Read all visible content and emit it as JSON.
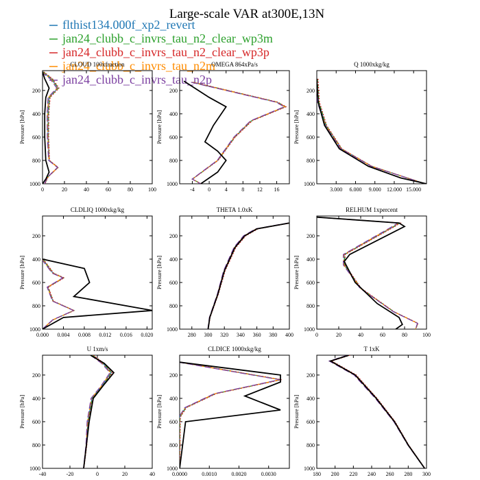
{
  "title": "Large-scale VAR at300E,13N",
  "legend": [
    {
      "name": "flthist134.000f_xp2_revert",
      "color": "#1f77b4",
      "dash": "solid"
    },
    {
      "name": "jan24_clubb_c_invrs_tau_n2_clear_wp3m",
      "color": "#2ca02c",
      "dash": "dash"
    },
    {
      "name": "jan24_clubb_c_invrs_tau_n2_clear_wp3p",
      "color": "#d62728",
      "dash": "dot"
    },
    {
      "name": "jan24_clubb_c_invrs_tau_n2m",
      "color": "#ff8c00",
      "dash": "dashdot"
    },
    {
      "name": "jan24_clubb_c_invrs_tau_n2p",
      "color": "#7b3fa0",
      "dash": "longdash"
    }
  ],
  "chart_data": [
    {
      "type": "line",
      "title": "CLOUD  100xfraction",
      "ylabel": "Pressure [hPa]",
      "xlim": [
        0,
        100
      ],
      "ylim": [
        1000,
        30
      ],
      "xticks": [
        0,
        20,
        40,
        60,
        80,
        100
      ],
      "yticks": [
        200,
        400,
        600,
        800,
        1000
      ],
      "obs": [
        [
          0,
          40
        ],
        [
          2,
          100
        ],
        [
          6,
          180
        ],
        [
          3,
          260
        ],
        [
          2,
          400
        ],
        [
          2,
          600
        ],
        [
          3,
          800
        ],
        [
          6,
          900
        ],
        [
          3,
          960
        ],
        [
          0,
          1000
        ]
      ],
      "model": [
        [
          0,
          40
        ],
        [
          8,
          100
        ],
        [
          14,
          180
        ],
        [
          6,
          260
        ],
        [
          5,
          400
        ],
        [
          5,
          600
        ],
        [
          6,
          800
        ],
        [
          14,
          860
        ],
        [
          5,
          940
        ],
        [
          2,
          1000
        ]
      ]
    },
    {
      "type": "line",
      "title": "OMEGA  864xPa/s",
      "ylabel": "Pressure [hPa]",
      "xlim": [
        -7,
        19
      ],
      "ylim": [
        1000,
        30
      ],
      "xticks": [
        -4,
        0,
        4,
        8,
        12,
        16
      ],
      "yticks": [
        200,
        400,
        600,
        800,
        1000
      ],
      "obs": [
        [
          -6,
          120
        ],
        [
          0,
          260
        ],
        [
          4,
          340
        ],
        [
          1,
          500
        ],
        [
          -1,
          640
        ],
        [
          2,
          720
        ],
        [
          4,
          800
        ],
        [
          2,
          900
        ],
        [
          -2,
          1000
        ]
      ],
      "model": [
        [
          -4,
          130
        ],
        [
          16,
          300
        ],
        [
          18,
          340
        ],
        [
          10,
          460
        ],
        [
          6,
          600
        ],
        [
          2,
          800
        ],
        [
          -4,
          960
        ],
        [
          -2,
          1000
        ]
      ]
    },
    {
      "type": "line",
      "title": "Q  1000xkg/kg",
      "ylabel": "Pressure [hPa]",
      "xlim": [
        0,
        17000
      ],
      "ylim": [
        1000,
        30
      ],
      "xticks": [
        3000,
        6000,
        9000,
        12000,
        15000
      ],
      "xticklabels": [
        "3.000",
        "6.000",
        "9.000",
        "12.000",
        "15.000"
      ],
      "yticks": [
        200,
        400,
        600,
        800,
        1000
      ],
      "obs": [
        [
          0,
          100
        ],
        [
          200,
          300
        ],
        [
          1200,
          500
        ],
        [
          3500,
          700
        ],
        [
          8000,
          850
        ],
        [
          13000,
          950
        ],
        [
          17000,
          1000
        ]
      ],
      "model": [
        [
          0,
          100
        ],
        [
          250,
          300
        ],
        [
          1400,
          500
        ],
        [
          3800,
          700
        ],
        [
          8500,
          850
        ],
        [
          14000,
          950
        ],
        [
          16800,
          1000
        ]
      ]
    },
    {
      "type": "line",
      "title": "CLDLIQ  1000xkg/kg",
      "ylabel": "Pressure [hPa]",
      "xlim": [
        0,
        0.021
      ],
      "ylim": [
        1000,
        30
      ],
      "xticks": [
        0,
        0.004,
        0.008,
        0.012,
        0.016,
        0.02
      ],
      "xticklabels": [
        "0.000",
        "0.004",
        "0.008",
        "0.012",
        "0.016",
        "0.020"
      ],
      "yticks": [
        200,
        400,
        600,
        800,
        1000
      ],
      "obs": [
        [
          0,
          400
        ],
        [
          0.008,
          480
        ],
        [
          0.009,
          600
        ],
        [
          0.006,
          720
        ],
        [
          0.021,
          840
        ],
        [
          0.004,
          900
        ],
        [
          0,
          1000
        ]
      ],
      "model": [
        [
          0,
          400
        ],
        [
          0.002,
          520
        ],
        [
          0.004,
          560
        ],
        [
          0.001,
          640
        ],
        [
          0.002,
          760
        ],
        [
          0.006,
          840
        ],
        [
          0.002,
          920
        ],
        [
          0,
          1000
        ]
      ]
    },
    {
      "type": "line",
      "title": "THETA  1.0xK",
      "ylabel": "Pressure [hPa]",
      "xlim": [
        265,
        400
      ],
      "ylim": [
        1000,
        30
      ],
      "xticks": [
        280,
        300,
        320,
        340,
        360,
        380,
        400
      ],
      "yticks": [
        200,
        400,
        600,
        800,
        1000
      ],
      "obs": [
        [
          400,
          90
        ],
        [
          360,
          140
        ],
        [
          345,
          200
        ],
        [
          333,
          300
        ],
        [
          320,
          500
        ],
        [
          312,
          700
        ],
        [
          302,
          900
        ],
        [
          300,
          1000
        ]
      ],
      "model": [
        [
          400,
          90
        ],
        [
          360,
          140
        ],
        [
          345,
          200
        ],
        [
          333,
          300
        ],
        [
          320,
          500
        ],
        [
          312,
          700
        ],
        [
          302,
          900
        ],
        [
          300,
          1000
        ]
      ]
    },
    {
      "type": "line",
      "title": "RELHUM  1xpercent",
      "ylabel": "Pressure [hPa]",
      "xlim": [
        0,
        100
      ],
      "ylim": [
        1000,
        30
      ],
      "xticks": [
        0,
        20,
        40,
        60,
        80,
        100
      ],
      "yticks": [
        200,
        400,
        600,
        800,
        1000
      ],
      "obs": [
        [
          0,
          40
        ],
        [
          75,
          90
        ],
        [
          80,
          120
        ],
        [
          30,
          360
        ],
        [
          25,
          420
        ],
        [
          35,
          600
        ],
        [
          55,
          780
        ],
        [
          75,
          900
        ],
        [
          78,
          960
        ],
        [
          72,
          1000
        ]
      ],
      "model": [
        [
          0,
          40
        ],
        [
          75,
          90
        ],
        [
          70,
          120
        ],
        [
          25,
          360
        ],
        [
          25,
          450
        ],
        [
          40,
          650
        ],
        [
          70,
          850
        ],
        [
          92,
          950
        ],
        [
          90,
          1000
        ]
      ]
    },
    {
      "type": "line",
      "title": "U  1xm/s",
      "ylabel": "Pressure [hPa]",
      "xlim": [
        -40,
        40
      ],
      "ylim": [
        1000,
        30
      ],
      "xticks": [
        -40,
        -20,
        0,
        20,
        40
      ],
      "yticks": [
        200,
        400,
        600,
        800,
        1000
      ],
      "obs": [
        [
          -5,
          30
        ],
        [
          5,
          100
        ],
        [
          12,
          180
        ],
        [
          5,
          280
        ],
        [
          -3,
          400
        ],
        [
          -6,
          600
        ],
        [
          -8,
          800
        ],
        [
          -10,
          1000
        ]
      ],
      "model": [
        [
          -4,
          30
        ],
        [
          4,
          100
        ],
        [
          10,
          180
        ],
        [
          3,
          300
        ],
        [
          -4,
          400
        ],
        [
          -7,
          600
        ],
        [
          -8,
          800
        ],
        [
          -10,
          1000
        ]
      ]
    },
    {
      "type": "line",
      "title": "CLDICE  1000xkg/kg",
      "ylabel": "Pressure [hPa]",
      "xlim": [
        0,
        0.0037
      ],
      "ylim": [
        1000,
        30
      ],
      "xticks": [
        0,
        0.001,
        0.002,
        0.003
      ],
      "xticklabels": [
        "0.0000",
        "0.0010",
        "0.0020",
        "0.0030"
      ],
      "yticks": [
        200,
        400,
        600,
        800,
        1000
      ],
      "obs": [
        [
          0,
          90
        ],
        [
          0.0034,
          200
        ],
        [
          0.0034,
          260
        ],
        [
          0.0022,
          380
        ],
        [
          0.0034,
          500
        ],
        [
          0.0002,
          600
        ],
        [
          0,
          1000
        ]
      ],
      "model": [
        [
          0,
          90
        ],
        [
          0.0034,
          240
        ],
        [
          0.0012,
          360
        ],
        [
          0.0002,
          480
        ],
        [
          0,
          560
        ],
        [
          0,
          1000
        ]
      ]
    },
    {
      "type": "line",
      "title": "T  1xK",
      "ylabel": "Pressure [hPa]",
      "xlim": [
        180,
        300
      ],
      "ylim": [
        1000,
        30
      ],
      "xticks": [
        180,
        200,
        220,
        240,
        260,
        280,
        300
      ],
      "yticks": [
        200,
        400,
        600,
        800,
        1000
      ],
      "obs": [
        [
          215,
          30
        ],
        [
          195,
          80
        ],
        [
          222,
          200
        ],
        [
          245,
          400
        ],
        [
          265,
          600
        ],
        [
          280,
          800
        ],
        [
          298,
          1000
        ]
      ],
      "model": [
        [
          215,
          30
        ],
        [
          195,
          80
        ],
        [
          222,
          200
        ],
        [
          245,
          400
        ],
        [
          265,
          600
        ],
        [
          280,
          800
        ],
        [
          298,
          1000
        ]
      ]
    }
  ]
}
